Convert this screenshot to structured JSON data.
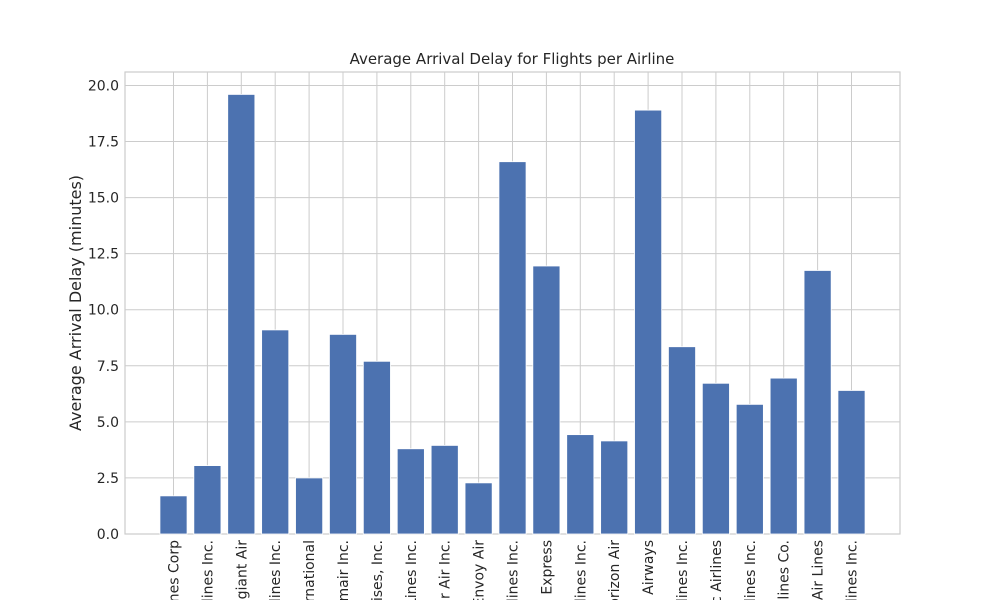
{
  "chart_data": {
    "type": "bar",
    "title": "Average Arrival Delay for Flights per Airline",
    "xlabel": "",
    "ylabel": "Average Arrival Delay (minutes)",
    "ylim": [
      0,
      20.6
    ],
    "yticks": [
      "0.0",
      "2.5",
      "5.0",
      "7.5",
      "10.0",
      "12.5",
      "15.0",
      "17.5",
      "20.0"
    ],
    "ytick_values": [
      0,
      2.5,
      5,
      7.5,
      10,
      12.5,
      15,
      17.5,
      20
    ],
    "grid": true,
    "bar_color": "#4c72b0",
    "categories": [
      "nes Corp",
      "lines Inc.",
      "egiant Air",
      "lines Inc.",
      "ernational",
      "nmair Inc.",
      "ises, Inc.",
      "Lines Inc.",
      "r Air Inc.",
      "Envoy Air",
      "lines Inc.",
      "Express",
      "lines Inc.",
      "orizon Air",
      "e Airways",
      "lines Inc.",
      "c Airlines",
      "lines Inc.",
      "lines Co.",
      "Air Lines",
      "lines Inc."
    ],
    "values": [
      1.7,
      3.05,
      19.6,
      9.1,
      2.5,
      8.9,
      7.7,
      3.8,
      3.95,
      2.28,
      16.6,
      11.95,
      4.43,
      4.15,
      18.9,
      8.35,
      6.72,
      5.78,
      6.95,
      11.75,
      6.4
    ]
  }
}
